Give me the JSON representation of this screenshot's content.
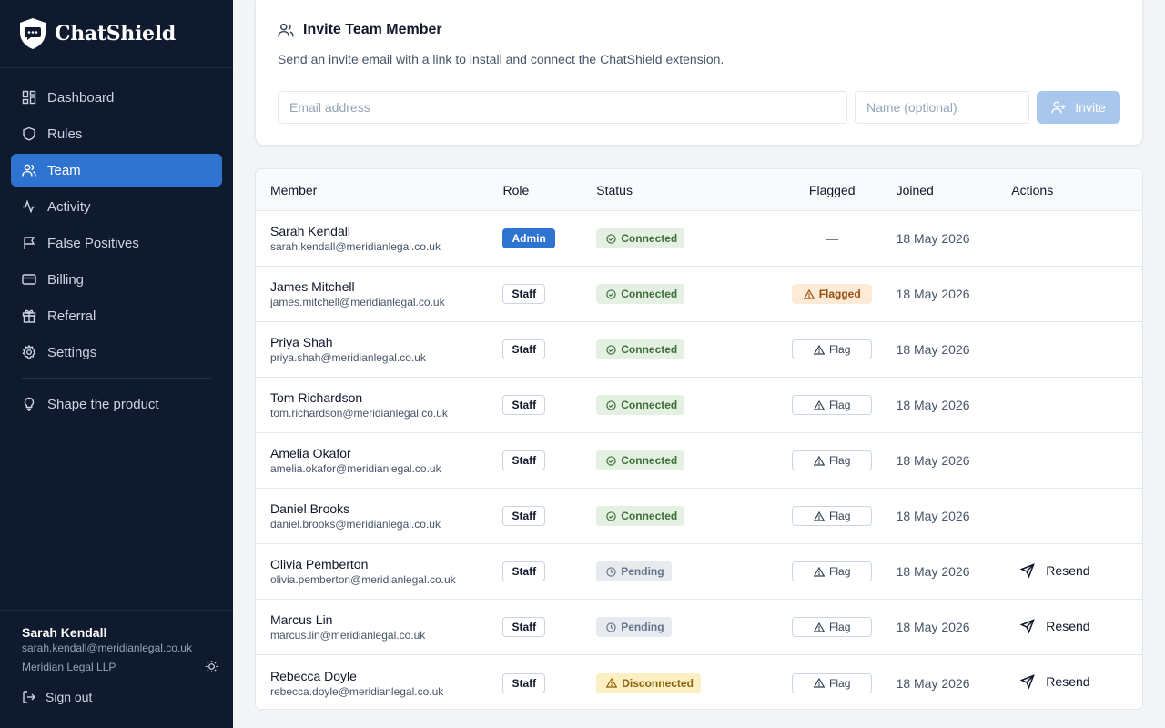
{
  "brand": {
    "name": "ChatShield"
  },
  "sidebar": {
    "items": [
      {
        "label": "Dashboard",
        "icon": "dashboard-icon"
      },
      {
        "label": "Rules",
        "icon": "shield-icon"
      },
      {
        "label": "Team",
        "icon": "users-icon",
        "active": true
      },
      {
        "label": "Activity",
        "icon": "activity-icon"
      },
      {
        "label": "False Positives",
        "icon": "flag-icon"
      },
      {
        "label": "Billing",
        "icon": "credit-card-icon"
      },
      {
        "label": "Referral",
        "icon": "gift-icon"
      },
      {
        "label": "Settings",
        "icon": "gear-icon"
      }
    ],
    "extra": {
      "label": "Shape the product",
      "icon": "lightbulb-icon"
    },
    "user": {
      "name": "Sarah Kendall",
      "email": "sarah.kendall@meridianlegal.co.uk",
      "org": "Meridian Legal LLP"
    },
    "signout_label": "Sign out"
  },
  "invite": {
    "title": "Invite Team Member",
    "description": "Send an invite email with a link to install and connect the ChatShield extension.",
    "email_placeholder": "Email address",
    "name_placeholder": "Name (optional)",
    "button_label": "Invite"
  },
  "table": {
    "columns": [
      "Member",
      "Role",
      "Status",
      "Flagged",
      "Joined",
      "Actions"
    ],
    "rows": [
      {
        "name": "Sarah Kendall",
        "email": "sarah.kendall@meridianlegal.co.uk",
        "role": "Admin",
        "status": "Connected",
        "flag": "—",
        "joined": "18 May 2026",
        "action": ""
      },
      {
        "name": "James Mitchell",
        "email": "james.mitchell@meridianlegal.co.uk",
        "role": "Staff",
        "status": "Connected",
        "flag": "Flagged",
        "joined": "18 May 2026",
        "action": ""
      },
      {
        "name": "Priya Shah",
        "email": "priya.shah@meridianlegal.co.uk",
        "role": "Staff",
        "status": "Connected",
        "flag": "Flag",
        "joined": "18 May 2026",
        "action": ""
      },
      {
        "name": "Tom Richardson",
        "email": "tom.richardson@meridianlegal.co.uk",
        "role": "Staff",
        "status": "Connected",
        "flag": "Flag",
        "joined": "18 May 2026",
        "action": ""
      },
      {
        "name": "Amelia Okafor",
        "email": "amelia.okafor@meridianlegal.co.uk",
        "role": "Staff",
        "status": "Connected",
        "flag": "Flag",
        "joined": "18 May 2026",
        "action": ""
      },
      {
        "name": "Daniel Brooks",
        "email": "daniel.brooks@meridianlegal.co.uk",
        "role": "Staff",
        "status": "Connected",
        "flag": "Flag",
        "joined": "18 May 2026",
        "action": ""
      },
      {
        "name": "Olivia Pemberton",
        "email": "olivia.pemberton@meridianlegal.co.uk",
        "role": "Staff",
        "status": "Pending",
        "flag": "Flag",
        "joined": "18 May 2026",
        "action": "Resend"
      },
      {
        "name": "Marcus Lin",
        "email": "marcus.lin@meridianlegal.co.uk",
        "role": "Staff",
        "status": "Pending",
        "flag": "Flag",
        "joined": "18 May 2026",
        "action": "Resend"
      },
      {
        "name": "Rebecca Doyle",
        "email": "rebecca.doyle@meridianlegal.co.uk",
        "role": "Staff",
        "status": "Disconnected",
        "flag": "Flag",
        "joined": "18 May 2026",
        "action": "Resend"
      }
    ]
  },
  "colors": {
    "sidebar_bg": "#0f1a2e",
    "accent": "#2f73d1",
    "connected": "#3f6e3a",
    "pending": "#64748b",
    "disconnected": "#8a6209",
    "flagged": "#9a4d0a"
  }
}
